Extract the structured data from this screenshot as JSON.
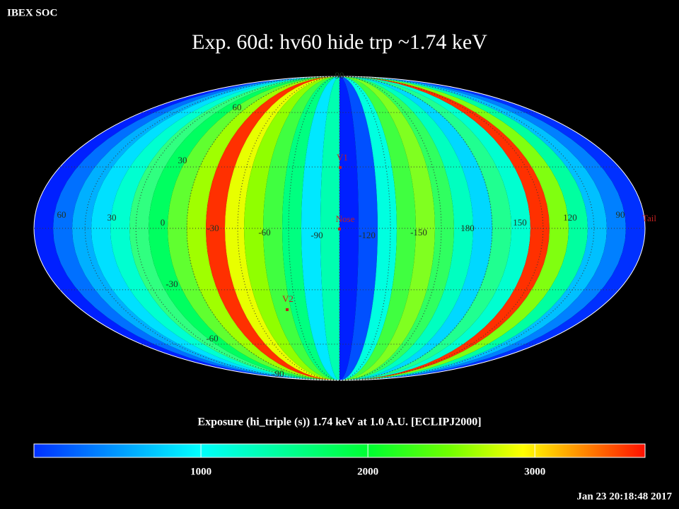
{
  "header": {
    "org": "IBEX SOC",
    "title": "Exp.   60d: hv60 hide trp ~1.74 keV"
  },
  "map": {
    "graticule_labels": [
      90,
      60,
      30,
      60,
      30,
      0,
      -30,
      -60,
      -90,
      -120,
      -150,
      180,
      150,
      120,
      90,
      -30,
      -60,
      -90
    ],
    "markers": [
      "V1",
      "Nose",
      "V2",
      "Tail"
    ]
  },
  "colorbar": {
    "title": "Exposure (hi_triple (s))  1.74 keV at 1.0 A.U. [ECLIPJ2000]",
    "xlim": [
      0,
      3660
    ],
    "xticks": [
      1000,
      2000,
      3000
    ]
  },
  "footer": {
    "timestamp": "Jan 23 20:18:48 2017"
  }
}
